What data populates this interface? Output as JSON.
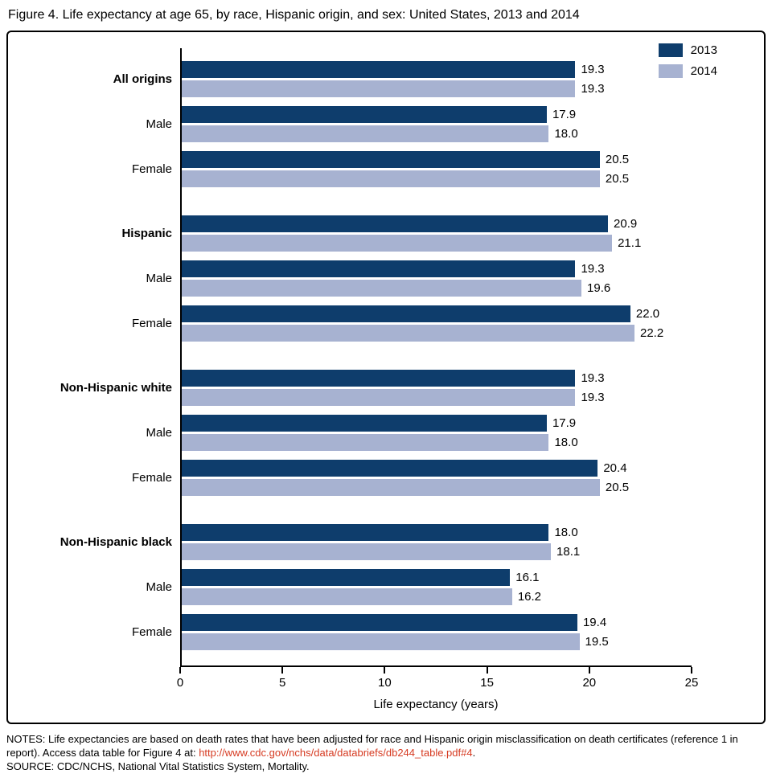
{
  "figure_title": "Figure 4. Life expectancy at age 65, by race, Hispanic origin, and sex: United States, 2013 and 2014",
  "chart_data": {
    "type": "bar",
    "orientation": "horizontal",
    "title": "Figure 4. Life expectancy at age 65, by race, Hispanic origin, and sex: United States, 2013 and 2014",
    "xlabel": "Life expectancy (years)",
    "xlim": [
      0,
      25
    ],
    "xticks": [
      "0",
      "5",
      "10",
      "15",
      "20",
      "25"
    ],
    "grid": false,
    "legend_position": "top-right",
    "series": [
      {
        "name": "2013",
        "color": "#0e3d6c"
      },
      {
        "name": "2014",
        "color": "#a7b2d1"
      }
    ],
    "rows": [
      {
        "label": "All origins",
        "bold": true,
        "values": [
          19.3,
          19.3
        ]
      },
      {
        "label": "Male",
        "bold": false,
        "values": [
          17.9,
          18.0
        ]
      },
      {
        "label": "Female",
        "bold": false,
        "values": [
          20.5,
          20.5
        ]
      },
      {
        "label": "Hispanic",
        "bold": true,
        "values": [
          20.9,
          21.1
        ]
      },
      {
        "label": "Male",
        "bold": false,
        "values": [
          19.3,
          19.6
        ]
      },
      {
        "label": "Female",
        "bold": false,
        "values": [
          22.0,
          22.2
        ]
      },
      {
        "label": "Non-Hispanic white",
        "bold": true,
        "values": [
          19.3,
          19.3
        ]
      },
      {
        "label": "Male",
        "bold": false,
        "values": [
          17.9,
          18.0
        ]
      },
      {
        "label": "Female",
        "bold": false,
        "values": [
          20.4,
          20.5
        ]
      },
      {
        "label": "Non-Hispanic black",
        "bold": true,
        "values": [
          18.0,
          18.1
        ]
      },
      {
        "label": "Male",
        "bold": false,
        "values": [
          16.1,
          16.2
        ]
      },
      {
        "label": "Female",
        "bold": false,
        "values": [
          19.4,
          19.5
        ]
      }
    ]
  },
  "notes": {
    "prefix": "NOTES: Life expectancies are based on death rates that have been adjusted for race and Hispanic origin misclassification on death certificates (reference 1 in report). Access data table for Figure 4 at: ",
    "link": "http://www.cdc.gov/nchs/data/databriefs/db244_table.pdf#4",
    "suffix": ".",
    "source": "SOURCE: CDC/NCHS, National Vital Statistics System, Mortality."
  }
}
